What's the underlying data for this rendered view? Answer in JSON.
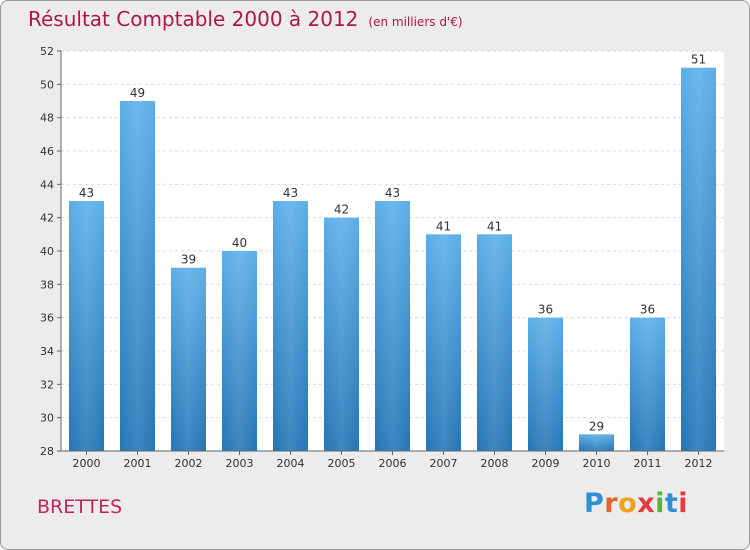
{
  "header": {
    "title": "Résultat Comptable 2000 à 2012",
    "unit": "(en milliers d'€)"
  },
  "footer": {
    "commune": "BRETTES",
    "logo_letters": [
      {
        "ch": "P",
        "color": "#2f8fd6"
      },
      {
        "ch": "r",
        "color": "#e8632b"
      },
      {
        "ch": "o",
        "color": "#f0a21e"
      },
      {
        "ch": "x",
        "color": "#e23b3b"
      },
      {
        "ch": "i",
        "color": "#5cb531"
      },
      {
        "ch": "t",
        "color": "#2f8fd6"
      },
      {
        "ch": "i",
        "color": "#e23b3b"
      }
    ]
  },
  "chart_data": {
    "type": "bar",
    "categories": [
      "2000",
      "2001",
      "2002",
      "2003",
      "2004",
      "2005",
      "2006",
      "2007",
      "2008",
      "2009",
      "2010",
      "2011",
      "2012"
    ],
    "values": [
      43,
      49,
      39,
      40,
      43,
      42,
      43,
      41,
      41,
      36,
      29,
      36,
      51
    ],
    "title": "Résultat Comptable 2000 à 2012",
    "xlabel": "",
    "ylabel": "",
    "ylim": [
      28,
      52
    ],
    "yticks": [
      28,
      30,
      32,
      34,
      36,
      38,
      40,
      42,
      44,
      46,
      48,
      50,
      52
    ],
    "grid": true,
    "bar_color_top": "#5baee8",
    "bar_color_bottom": "#2475b5"
  }
}
